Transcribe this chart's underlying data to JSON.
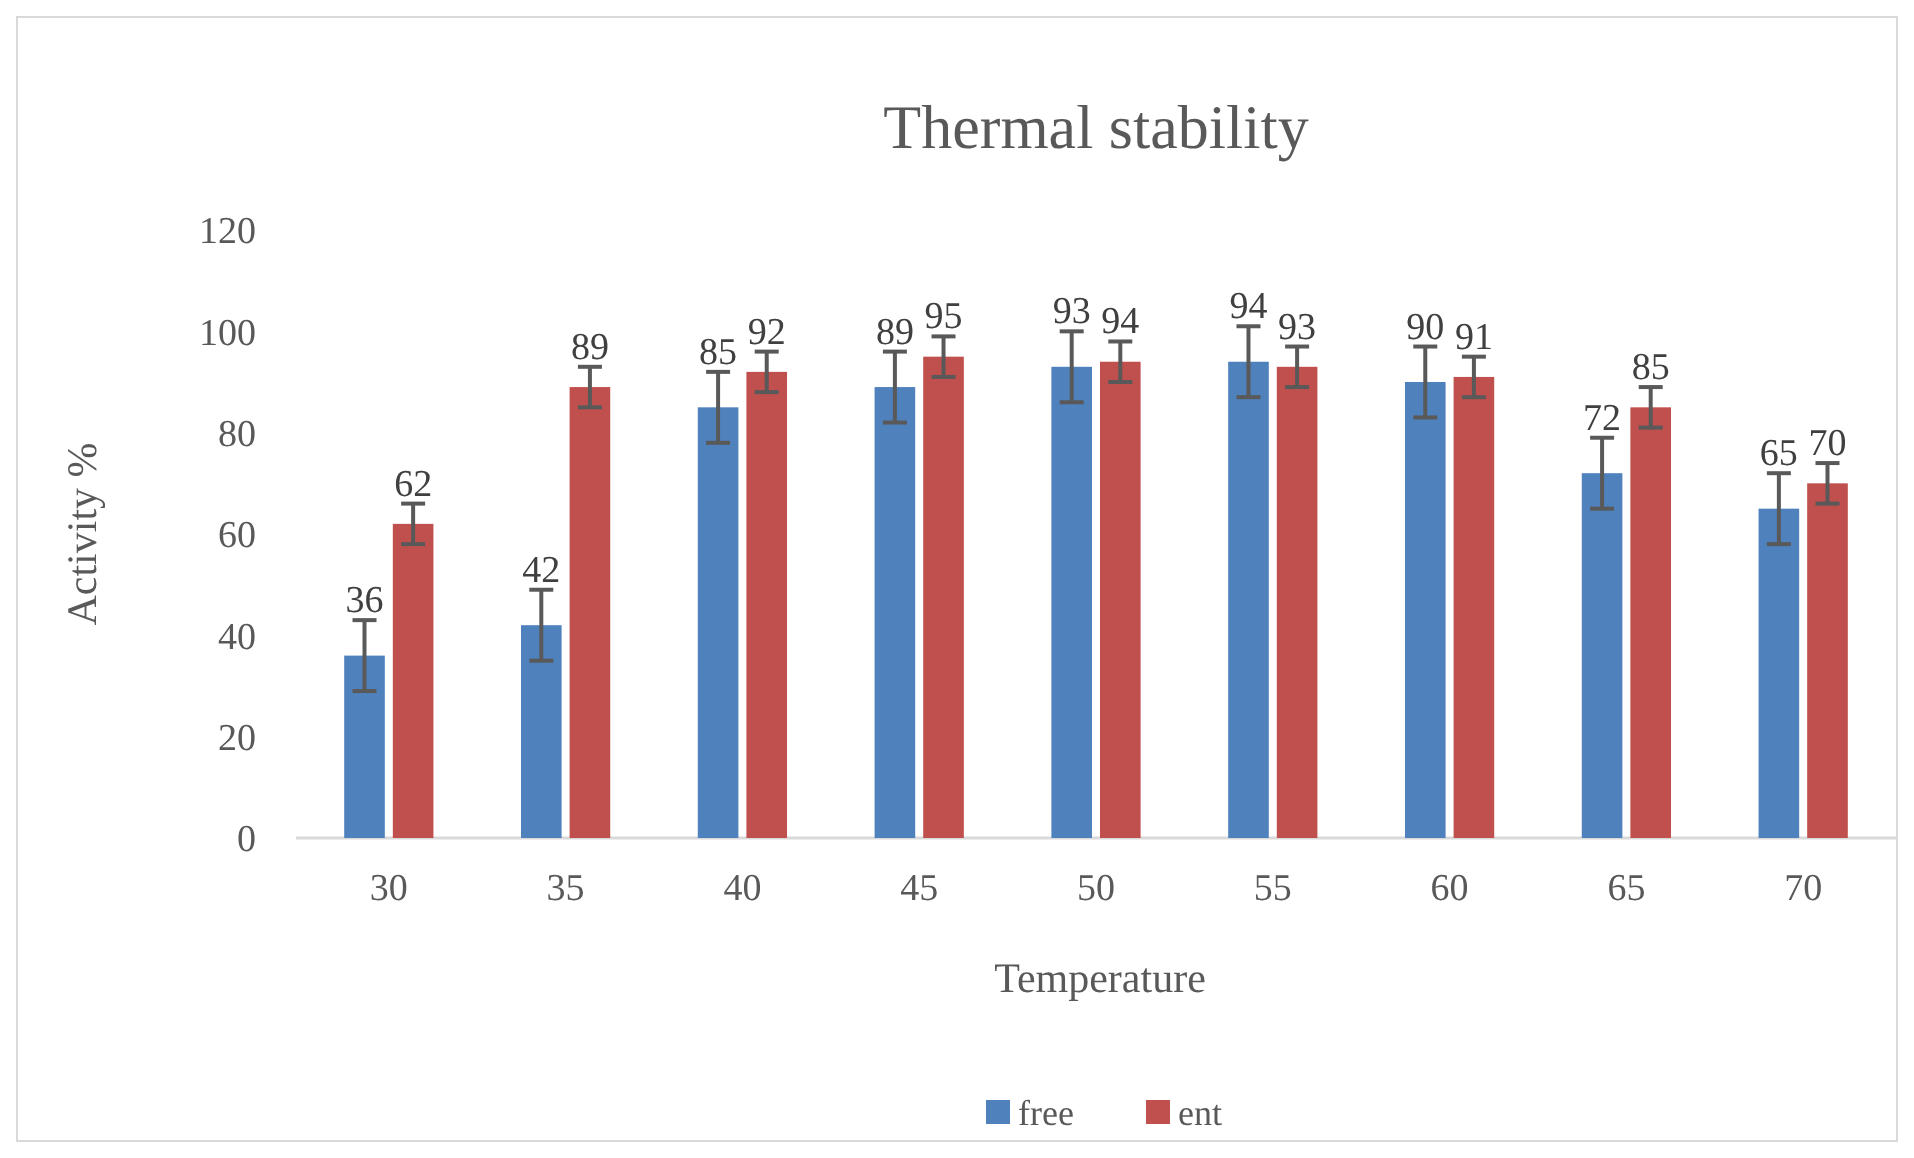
{
  "chart_data": {
    "type": "bar",
    "title": "Thermal stability",
    "xlabel": "Temperature",
    "ylabel": "Activity %",
    "categories": [
      "30",
      "35",
      "40",
      "45",
      "50",
      "55",
      "60",
      "65",
      "70"
    ],
    "series": [
      {
        "name": "free",
        "color": "#4f81bd",
        "values": [
          36,
          42,
          85,
          89,
          93,
          94,
          90,
          72,
          65
        ],
        "errors": [
          7,
          7,
          7,
          7,
          7,
          7,
          7,
          7,
          7
        ]
      },
      {
        "name": "ent",
        "color": "#c0504d",
        "values": [
          62,
          89,
          92,
          95,
          94,
          93,
          91,
          85,
          70
        ],
        "errors": [
          4,
          4,
          4,
          4,
          4,
          4,
          4,
          4,
          4
        ]
      }
    ],
    "ylim": [
      0,
      120
    ],
    "yticks": [
      0,
      20,
      40,
      60,
      80,
      100,
      120
    ],
    "grid": false,
    "legend": "bottom",
    "data_labels": true
  }
}
